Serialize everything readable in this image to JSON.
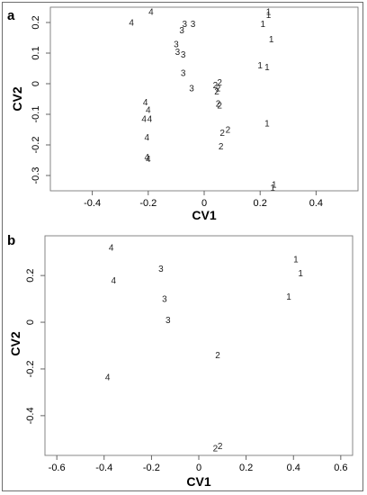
{
  "chart_data": [
    {
      "panel": "a",
      "type": "scatter",
      "title": "",
      "xlabel": "CV1",
      "ylabel": "CV2",
      "xlim": [
        -0.55,
        0.55
      ],
      "ylim": [
        -0.35,
        0.25
      ],
      "xticks": [
        -0.4,
        -0.2,
        0.0,
        0.2,
        0.4
      ],
      "yticks": [
        -0.3,
        -0.2,
        -0.1,
        0.0,
        0.1,
        0.2
      ],
      "grid": false,
      "legend": "none",
      "points": [
        {
          "x": -0.19,
          "y": 0.235,
          "label": "4"
        },
        {
          "x": -0.26,
          "y": 0.2,
          "label": "4"
        },
        {
          "x": -0.21,
          "y": -0.06,
          "label": "4"
        },
        {
          "x": -0.2,
          "y": -0.085,
          "label": "4"
        },
        {
          "x": -0.215,
          "y": -0.115,
          "label": "4"
        },
        {
          "x": -0.195,
          "y": -0.115,
          "label": "4"
        },
        {
          "x": -0.205,
          "y": -0.175,
          "label": "4"
        },
        {
          "x": -0.205,
          "y": -0.24,
          "label": "4"
        },
        {
          "x": -0.2,
          "y": -0.245,
          "label": "4"
        },
        {
          "x": -0.07,
          "y": 0.195,
          "label": "3"
        },
        {
          "x": -0.08,
          "y": 0.175,
          "label": "3"
        },
        {
          "x": -0.04,
          "y": 0.195,
          "label": "3"
        },
        {
          "x": -0.1,
          "y": 0.13,
          "label": "3"
        },
        {
          "x": -0.095,
          "y": 0.105,
          "label": "3"
        },
        {
          "x": -0.075,
          "y": 0.095,
          "label": "3"
        },
        {
          "x": -0.075,
          "y": 0.035,
          "label": "3"
        },
        {
          "x": -0.045,
          "y": -0.015,
          "label": "3"
        },
        {
          "x": 0.055,
          "y": 0.005,
          "label": "2"
        },
        {
          "x": 0.04,
          "y": -0.005,
          "label": "2"
        },
        {
          "x": 0.05,
          "y": -0.015,
          "label": "2"
        },
        {
          "x": 0.045,
          "y": -0.025,
          "label": "2"
        },
        {
          "x": 0.05,
          "y": -0.065,
          "label": "2"
        },
        {
          "x": 0.055,
          "y": -0.07,
          "label": "2"
        },
        {
          "x": 0.085,
          "y": -0.15,
          "label": "2"
        },
        {
          "x": 0.065,
          "y": -0.16,
          "label": "2"
        },
        {
          "x": 0.06,
          "y": -0.205,
          "label": "2"
        },
        {
          "x": 0.23,
          "y": 0.235,
          "label": "1"
        },
        {
          "x": 0.23,
          "y": 0.225,
          "label": "1"
        },
        {
          "x": 0.21,
          "y": 0.195,
          "label": "1"
        },
        {
          "x": 0.24,
          "y": 0.145,
          "label": "1"
        },
        {
          "x": 0.2,
          "y": 0.06,
          "label": "1"
        },
        {
          "x": 0.225,
          "y": 0.055,
          "label": "1"
        },
        {
          "x": 0.225,
          "y": -0.13,
          "label": "1"
        },
        {
          "x": 0.25,
          "y": -0.33,
          "label": "1"
        },
        {
          "x": 0.245,
          "y": -0.34,
          "label": "1"
        }
      ]
    },
    {
      "panel": "b",
      "type": "scatter",
      "title": "",
      "xlabel": "CV1",
      "ylabel": "CV2",
      "xlim": [
        -0.65,
        0.65
      ],
      "ylim": [
        -0.57,
        0.37
      ],
      "xticks": [
        -0.6,
        -0.4,
        -0.2,
        0.0,
        0.2,
        0.4,
        0.6
      ],
      "yticks": [
        -0.4,
        -0.2,
        0.0,
        0.2
      ],
      "grid": false,
      "legend": "none",
      "points": [
        {
          "x": -0.37,
          "y": 0.32,
          "label": "4"
        },
        {
          "x": -0.36,
          "y": 0.18,
          "label": "4"
        },
        {
          "x": -0.385,
          "y": -0.235,
          "label": "4"
        },
        {
          "x": -0.16,
          "y": 0.23,
          "label": "3"
        },
        {
          "x": -0.145,
          "y": 0.1,
          "label": "3"
        },
        {
          "x": -0.13,
          "y": 0.01,
          "label": "3"
        },
        {
          "x": 0.08,
          "y": -0.14,
          "label": "2"
        },
        {
          "x": 0.07,
          "y": -0.54,
          "label": "2"
        },
        {
          "x": 0.09,
          "y": -0.53,
          "label": "2"
        },
        {
          "x": 0.41,
          "y": 0.27,
          "label": "1"
        },
        {
          "x": 0.43,
          "y": 0.21,
          "label": "1"
        },
        {
          "x": 0.38,
          "y": 0.11,
          "label": "1"
        }
      ]
    }
  ]
}
